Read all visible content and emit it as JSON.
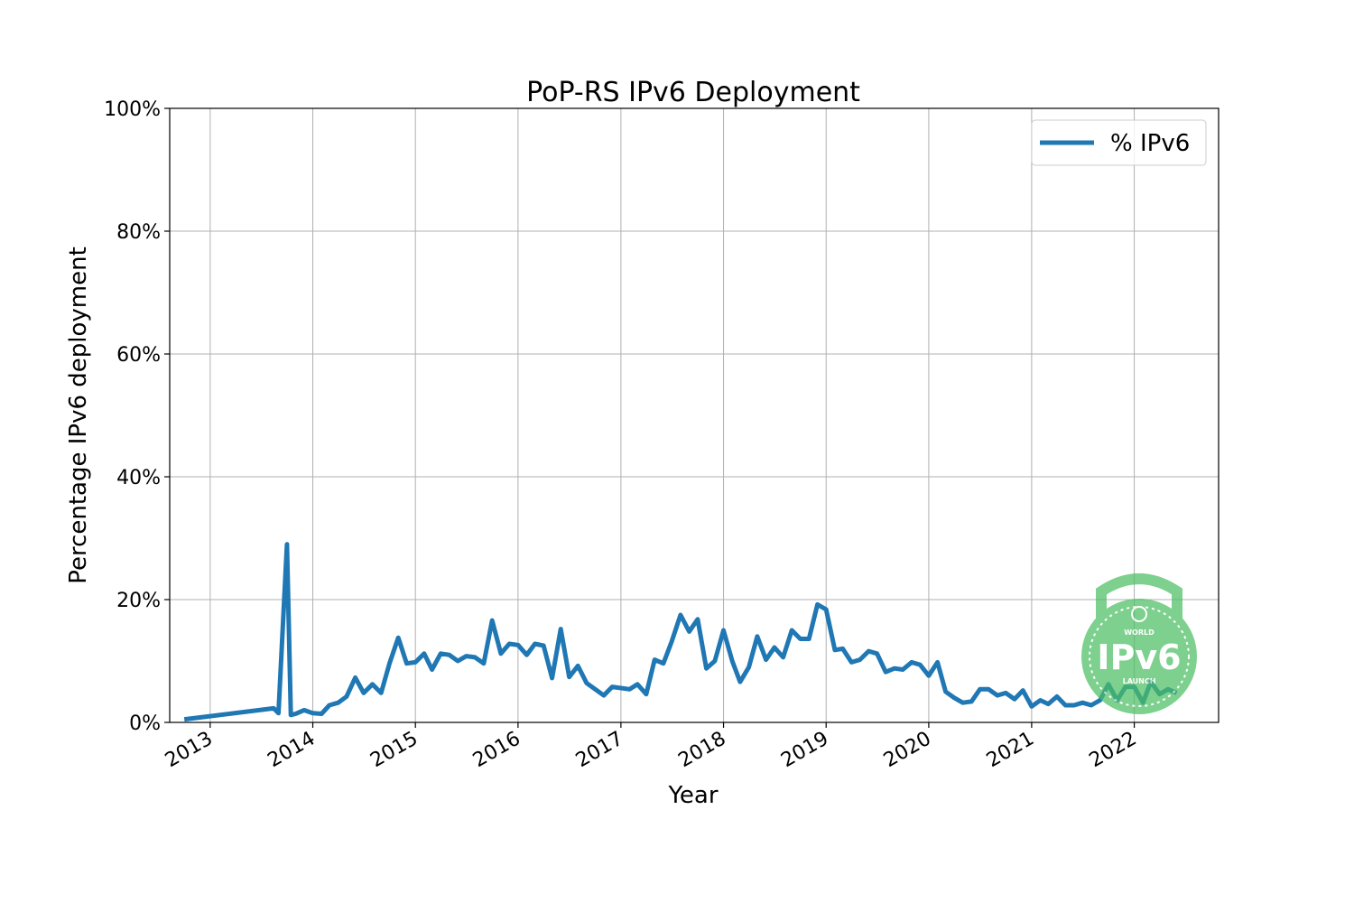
{
  "chart_data": {
    "type": "line",
    "title": "PoP-RS IPv6 Deployment",
    "xlabel": "Year",
    "ylabel": "Percentage IPv6 deployment",
    "xlim": [
      "2012-08-10",
      "2022-10-28"
    ],
    "ylim": [
      0,
      100
    ],
    "x_ticks": [
      "2013",
      "2014",
      "2015",
      "2016",
      "2017",
      "2018",
      "2019",
      "2020",
      "2021",
      "2022"
    ],
    "y_ticks": [
      "0%",
      "20%",
      "40%",
      "60%",
      "80%",
      "100%"
    ],
    "grid": true,
    "legend_position": "top-right",
    "series": [
      {
        "name": "% IPv6",
        "color": "#1f77b4",
        "points": [
          [
            "2012-10-01",
            0.5
          ],
          [
            "2013-08-15",
            2.3
          ],
          [
            "2013-09-01",
            1.5
          ],
          [
            "2013-10-01",
            29.0
          ],
          [
            "2013-10-15",
            1.2
          ],
          [
            "2013-11-01",
            1.4
          ],
          [
            "2013-12-01",
            2.0
          ],
          [
            "2014-01-01",
            1.5
          ],
          [
            "2014-02-01",
            1.4
          ],
          [
            "2014-03-01",
            2.8
          ],
          [
            "2014-04-01",
            3.2
          ],
          [
            "2014-05-01",
            4.2
          ],
          [
            "2014-06-01",
            7.3
          ],
          [
            "2014-07-01",
            4.8
          ],
          [
            "2014-08-01",
            6.2
          ],
          [
            "2014-09-01",
            4.8
          ],
          [
            "2014-10-01",
            9.6
          ],
          [
            "2014-11-01",
            13.8
          ],
          [
            "2014-12-01",
            9.6
          ],
          [
            "2015-01-01",
            9.8
          ],
          [
            "2015-02-01",
            11.2
          ],
          [
            "2015-03-01",
            8.6
          ],
          [
            "2015-04-01",
            11.2
          ],
          [
            "2015-05-01",
            11.0
          ],
          [
            "2015-06-01",
            10.0
          ],
          [
            "2015-07-01",
            10.8
          ],
          [
            "2015-08-01",
            10.6
          ],
          [
            "2015-09-01",
            9.6
          ],
          [
            "2015-10-01",
            16.6
          ],
          [
            "2015-11-01",
            11.2
          ],
          [
            "2015-12-01",
            12.8
          ],
          [
            "2016-01-01",
            12.6
          ],
          [
            "2016-02-01",
            11.0
          ],
          [
            "2016-03-01",
            12.8
          ],
          [
            "2016-04-01",
            12.5
          ],
          [
            "2016-05-01",
            7.2
          ],
          [
            "2016-06-01",
            15.2
          ],
          [
            "2016-07-01",
            7.4
          ],
          [
            "2016-08-01",
            9.2
          ],
          [
            "2016-09-01",
            6.4
          ],
          [
            "2016-11-01",
            4.4
          ],
          [
            "2016-12-01",
            5.8
          ],
          [
            "2017-02-01",
            5.4
          ],
          [
            "2017-03-01",
            6.2
          ],
          [
            "2017-04-01",
            4.6
          ],
          [
            "2017-05-01",
            10.2
          ],
          [
            "2017-06-01",
            9.6
          ],
          [
            "2017-07-01",
            13.2
          ],
          [
            "2017-08-01",
            17.5
          ],
          [
            "2017-09-01",
            14.8
          ],
          [
            "2017-10-01",
            16.8
          ],
          [
            "2017-11-01",
            8.8
          ],
          [
            "2017-12-01",
            10.0
          ],
          [
            "2018-01-01",
            15.0
          ],
          [
            "2018-02-01",
            10.0
          ],
          [
            "2018-03-01",
            6.6
          ],
          [
            "2018-04-01",
            9.0
          ],
          [
            "2018-05-01",
            14.0
          ],
          [
            "2018-06-01",
            10.2
          ],
          [
            "2018-07-01",
            12.2
          ],
          [
            "2018-08-01",
            10.6
          ],
          [
            "2018-09-01",
            15.0
          ],
          [
            "2018-10-01",
            13.6
          ],
          [
            "2018-11-01",
            13.6
          ],
          [
            "2018-12-01",
            19.2
          ],
          [
            "2019-01-01",
            18.4
          ],
          [
            "2019-02-01",
            11.8
          ],
          [
            "2019-03-01",
            12.0
          ],
          [
            "2019-04-01",
            9.8
          ],
          [
            "2019-05-01",
            10.2
          ],
          [
            "2019-06-01",
            11.6
          ],
          [
            "2019-07-01",
            11.2
          ],
          [
            "2019-08-01",
            8.2
          ],
          [
            "2019-09-01",
            8.8
          ],
          [
            "2019-10-01",
            8.6
          ],
          [
            "2019-11-01",
            9.8
          ],
          [
            "2019-12-01",
            9.4
          ],
          [
            "2020-01-01",
            7.6
          ],
          [
            "2020-02-01",
            9.8
          ],
          [
            "2020-03-01",
            5.0
          ],
          [
            "2020-04-01",
            4.0
          ],
          [
            "2020-05-01",
            3.2
          ],
          [
            "2020-06-01",
            3.4
          ],
          [
            "2020-07-01",
            5.4
          ],
          [
            "2020-08-01",
            5.4
          ],
          [
            "2020-09-01",
            4.4
          ],
          [
            "2020-10-01",
            4.8
          ],
          [
            "2020-11-01",
            3.8
          ],
          [
            "2020-12-01",
            5.2
          ],
          [
            "2021-01-01",
            2.6
          ],
          [
            "2021-02-01",
            3.6
          ],
          [
            "2021-03-01",
            3.0
          ],
          [
            "2021-04-01",
            4.2
          ],
          [
            "2021-05-01",
            2.8
          ],
          [
            "2021-06-01",
            2.8
          ],
          [
            "2021-07-01",
            3.2
          ],
          [
            "2021-08-01",
            2.8
          ],
          [
            "2021-09-01",
            3.6
          ],
          [
            "2021-10-01",
            6.2
          ],
          [
            "2021-11-01",
            3.6
          ],
          [
            "2021-12-01",
            5.8
          ],
          [
            "2022-01-01",
            5.8
          ],
          [
            "2022-02-01",
            3.2
          ],
          [
            "2022-03-01",
            6.6
          ],
          [
            "2022-04-01",
            4.6
          ],
          [
            "2022-05-01",
            5.4
          ],
          [
            "2022-06-01",
            4.8
          ]
        ]
      }
    ]
  },
  "badge": {
    "top_text": "WORLD",
    "main_text": "IPv6",
    "bottom_text": "LAUNCH",
    "color": "#4cbf63"
  }
}
